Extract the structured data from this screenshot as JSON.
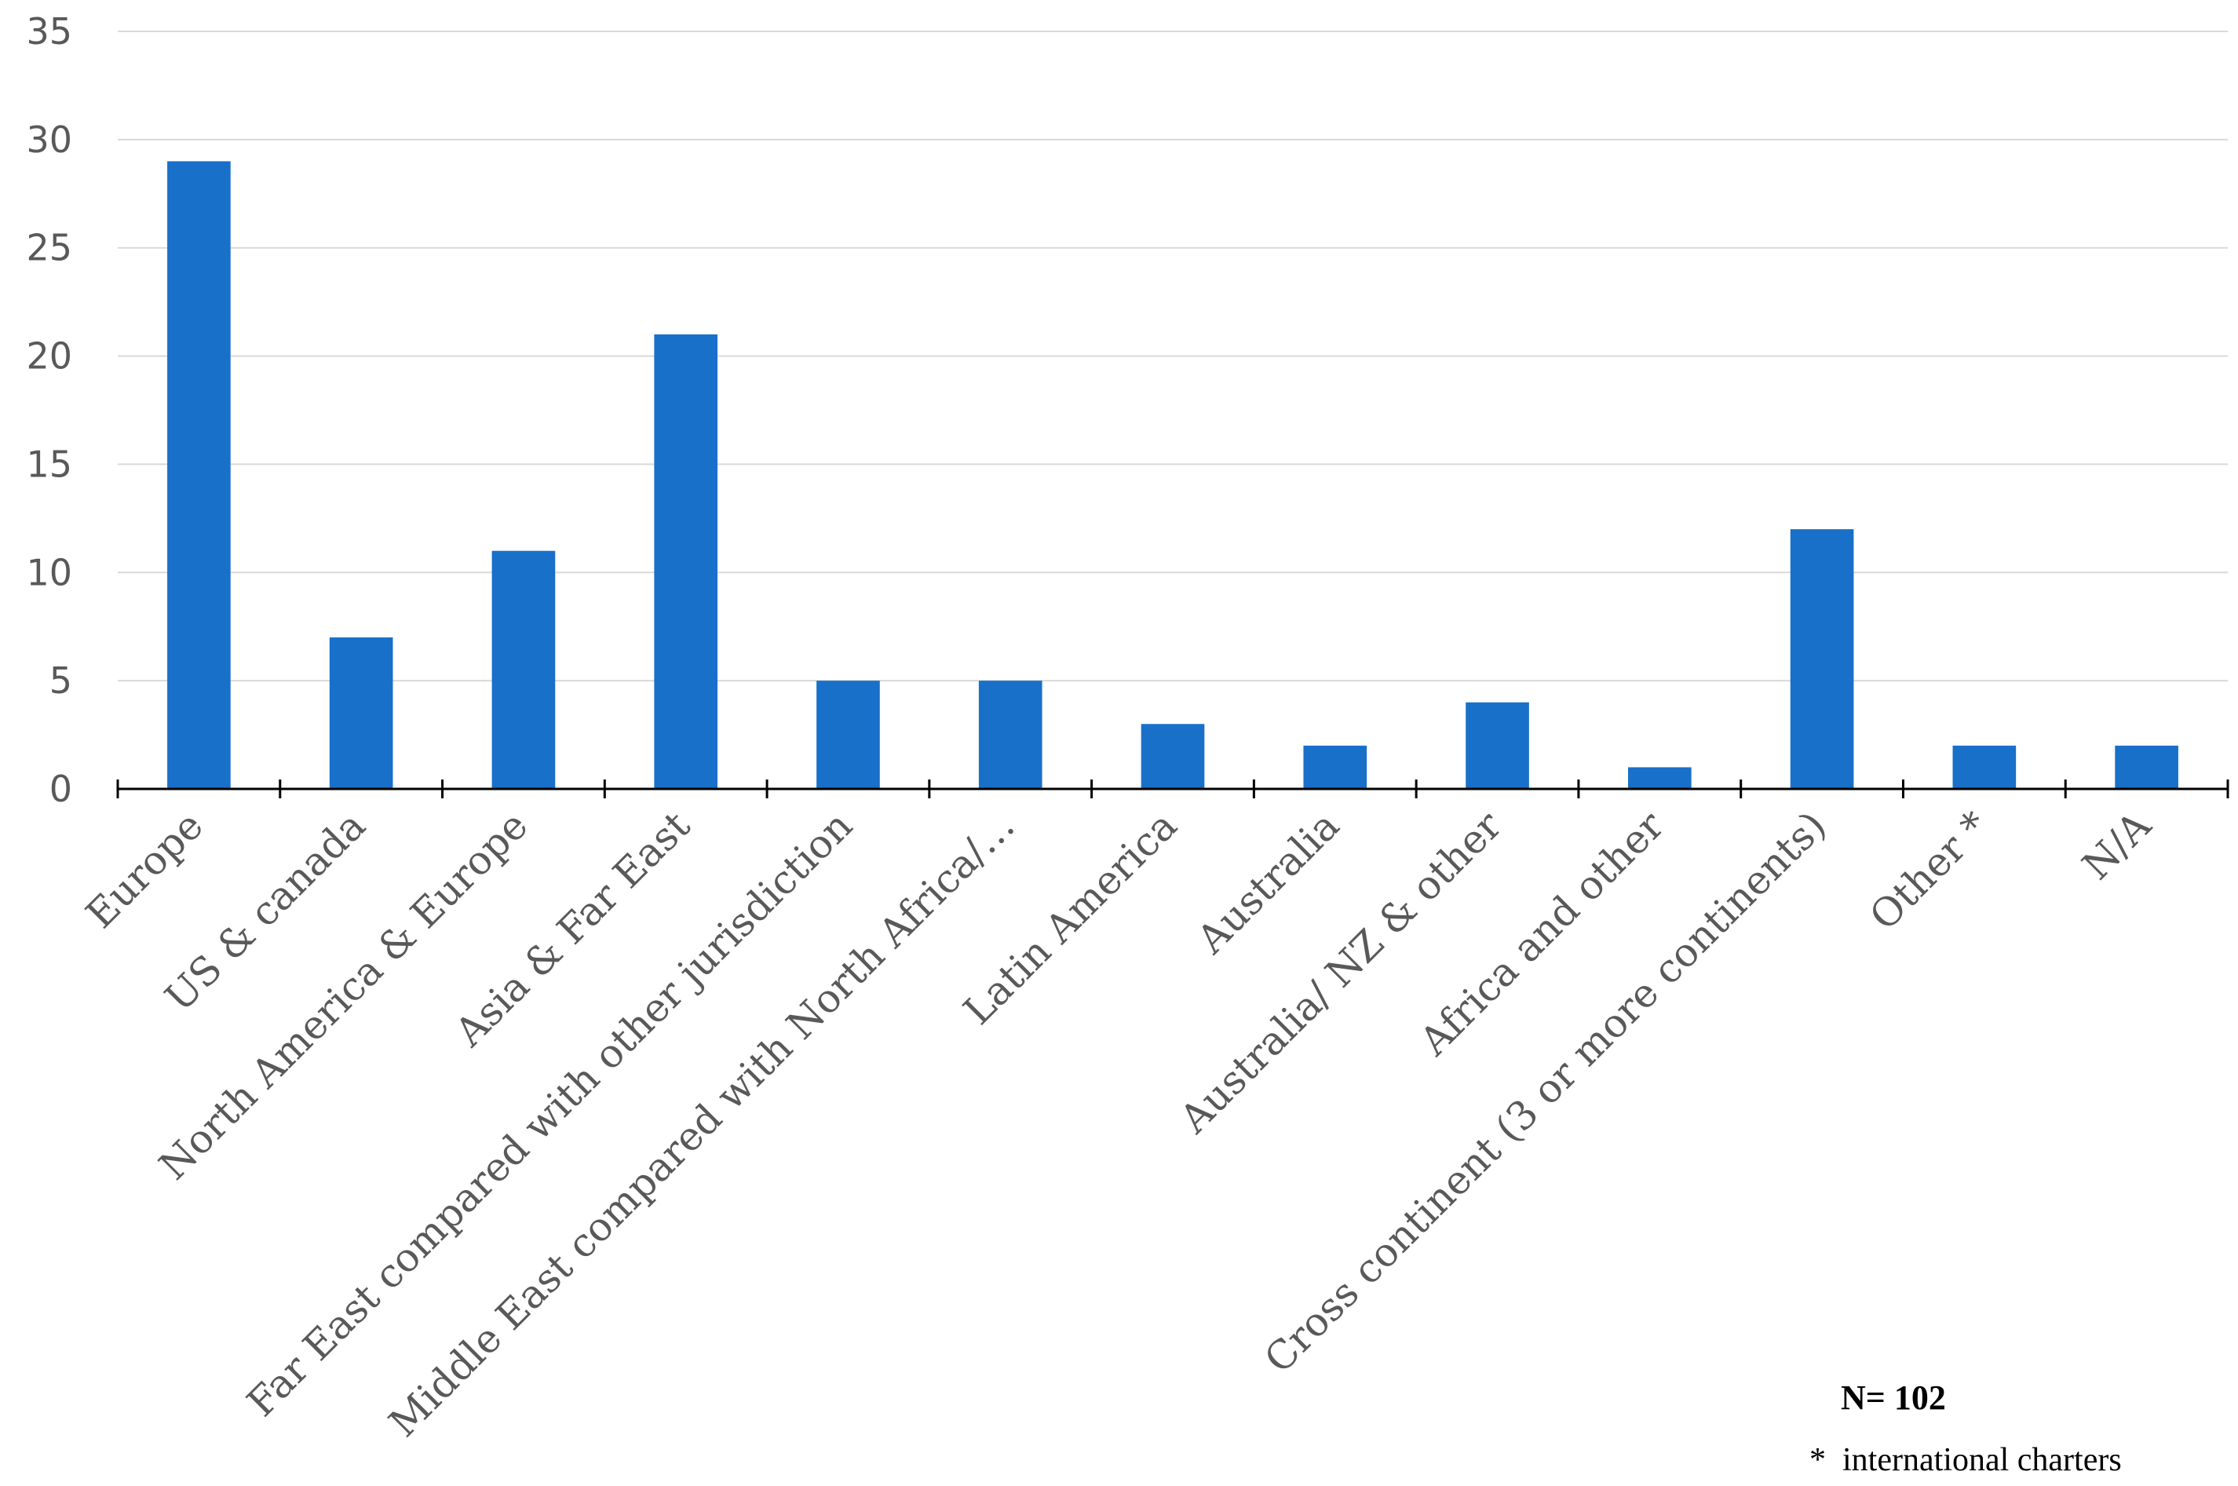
{
  "chart_data": {
    "type": "bar",
    "categories": [
      "Europe",
      "US & canada",
      "North America & Europe",
      "Asia & Far East",
      "Far East compared with other jurisdiction",
      "Middle East compared with North Africa/…",
      "Latin America",
      "Australia",
      "Australia/ NZ & other",
      "Africa and other",
      "Cross continent (3 or more continents)",
      "Other *",
      "N/A"
    ],
    "values": [
      29,
      7,
      11,
      21,
      5,
      5,
      3,
      2,
      4,
      1,
      12,
      2,
      2
    ],
    "ylim": [
      0,
      35
    ],
    "yticks": [
      0,
      5,
      10,
      15,
      20,
      25,
      30,
      35
    ],
    "grid": true,
    "bar_color": "#1870C9",
    "title": "",
    "xlabel": "",
    "ylabel": ""
  },
  "notes": {
    "sample_size": "N= 102",
    "footnote": "*  international charters"
  }
}
